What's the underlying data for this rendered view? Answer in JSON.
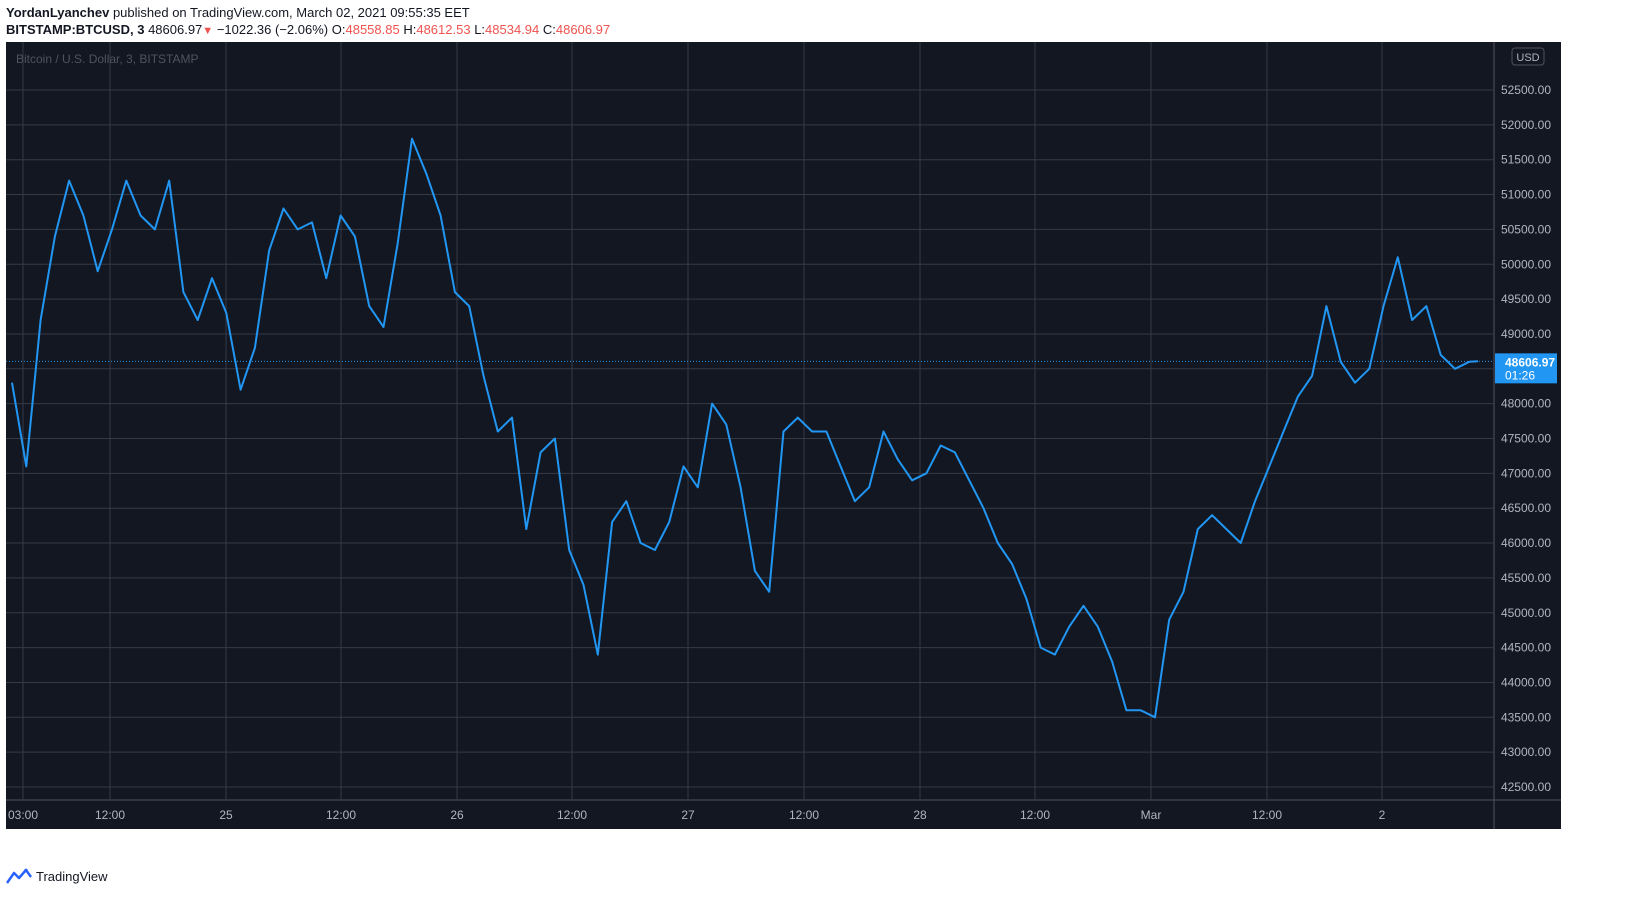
{
  "header": {
    "author": "YordanLyanchev",
    "published_text": "published on TradingView.com, March 02, 2021 09:55:35 EET",
    "symbol": "BITSTAMP:BTCUSD, 3",
    "last_price": "48606.97",
    "change": "−1022.36 (−2.06%)",
    "open_label": "O:",
    "open": "48558.85",
    "high_label": "H:",
    "high": "48612.53",
    "low_label": "L:",
    "low": "48534.94",
    "close_label": "C:",
    "close": "48606.97"
  },
  "footer": {
    "brand": "TradingView"
  },
  "colors": {
    "background": "#131722",
    "grid": "#363a45",
    "line": "#2196f3",
    "axis_text": "#b2b5be",
    "down": "#ef5350",
    "tag": "#2196f3"
  },
  "chart_data": {
    "type": "line",
    "title": "Bitcoin / U.S. Dollar, 3, BITSTAMP",
    "currency": "USD",
    "price_tag": {
      "value": "48606.97",
      "countdown": "01:26"
    },
    "ylim": [
      42500,
      53000
    ],
    "y_ticks": [
      "42500.00",
      "43000.00",
      "43500.00",
      "44000.00",
      "44500.00",
      "45000.00",
      "45500.00",
      "46000.00",
      "46500.00",
      "47000.00",
      "47500.00",
      "48000.00",
      "48500.00",
      "49000.00",
      "49500.00",
      "50000.00",
      "50500.00",
      "51000.00",
      "51500.00",
      "52000.00",
      "52500.00"
    ],
    "x_ticks": [
      "03:00",
      "12:00",
      "25",
      "12:00",
      "26",
      "12:00",
      "27",
      "12:00",
      "28",
      "12:00",
      "Mar",
      "12:00",
      "2"
    ],
    "x_start": "2021-02-24 00:00",
    "x_end": "2021-03-02 09:55",
    "grid": true,
    "series": [
      {
        "name": "BTCUSD",
        "x": [
          "2021-02-24 00:00",
          "2021-02-24 01:30",
          "2021-02-24 03:00",
          "2021-02-24 04:30",
          "2021-02-24 06:00",
          "2021-02-24 07:30",
          "2021-02-24 09:00",
          "2021-02-24 10:30",
          "2021-02-24 12:00",
          "2021-02-24 13:30",
          "2021-02-24 15:00",
          "2021-02-24 16:30",
          "2021-02-24 18:00",
          "2021-02-24 19:30",
          "2021-02-24 21:00",
          "2021-02-24 22:30",
          "2021-02-25 00:00",
          "2021-02-25 01:30",
          "2021-02-25 03:00",
          "2021-02-25 04:30",
          "2021-02-25 06:00",
          "2021-02-25 07:30",
          "2021-02-25 09:00",
          "2021-02-25 10:30",
          "2021-02-25 12:00",
          "2021-02-25 13:30",
          "2021-02-25 15:00",
          "2021-02-25 16:30",
          "2021-02-25 18:00",
          "2021-02-25 19:30",
          "2021-02-25 21:00",
          "2021-02-25 22:30",
          "2021-02-26 00:00",
          "2021-02-26 01:30",
          "2021-02-26 03:00",
          "2021-02-26 04:30",
          "2021-02-26 06:00",
          "2021-02-26 07:30",
          "2021-02-26 09:00",
          "2021-02-26 10:30",
          "2021-02-26 12:00",
          "2021-02-26 13:30",
          "2021-02-26 15:00",
          "2021-02-26 16:30",
          "2021-02-26 18:00",
          "2021-02-26 19:30",
          "2021-02-26 21:00",
          "2021-02-26 22:30",
          "2021-02-27 00:00",
          "2021-02-27 01:30",
          "2021-02-27 03:00",
          "2021-02-27 04:30",
          "2021-02-27 06:00",
          "2021-02-27 07:30",
          "2021-02-27 09:00",
          "2021-02-27 10:30",
          "2021-02-27 12:00",
          "2021-02-27 13:30",
          "2021-02-27 15:00",
          "2021-02-27 16:30",
          "2021-02-27 18:00",
          "2021-02-27 19:30",
          "2021-02-27 21:00",
          "2021-02-27 22:30",
          "2021-02-28 00:00",
          "2021-02-28 01:30",
          "2021-02-28 03:00",
          "2021-02-28 04:30",
          "2021-02-28 06:00",
          "2021-02-28 07:30",
          "2021-02-28 09:00",
          "2021-02-28 10:30",
          "2021-02-28 12:00",
          "2021-02-28 13:30",
          "2021-02-28 15:00",
          "2021-02-28 16:30",
          "2021-02-28 18:00",
          "2021-02-28 19:30",
          "2021-02-28 21:00",
          "2021-02-28 22:30",
          "2021-03-01 00:00",
          "2021-03-01 01:30",
          "2021-03-01 03:00",
          "2021-03-01 04:30",
          "2021-03-01 06:00",
          "2021-03-01 07:30",
          "2021-03-01 09:00",
          "2021-03-01 10:30",
          "2021-03-01 12:00",
          "2021-03-01 13:30",
          "2021-03-01 15:00",
          "2021-03-01 16:30",
          "2021-03-01 18:00",
          "2021-03-01 19:30",
          "2021-03-01 21:00",
          "2021-03-01 22:30",
          "2021-03-02 00:00",
          "2021-03-02 01:30",
          "2021-03-02 03:00",
          "2021-03-02 04:30",
          "2021-03-02 06:00",
          "2021-03-02 07:30",
          "2021-03-02 09:00",
          "2021-03-02 09:55"
        ],
        "y": [
          48300,
          47100,
          49200,
          50400,
          51200,
          50700,
          49900,
          50500,
          51200,
          50700,
          50500,
          51200,
          49600,
          49200,
          49800,
          49300,
          48200,
          48800,
          50200,
          50800,
          50500,
          50600,
          49800,
          50700,
          50400,
          49400,
          49100,
          50300,
          51800,
          51300,
          50700,
          49600,
          49400,
          48400,
          47600,
          47800,
          46200,
          47300,
          47500,
          45900,
          45400,
          44400,
          46300,
          46600,
          46000,
          45900,
          46300,
          47100,
          46800,
          48000,
          47700,
          46800,
          45600,
          45300,
          47600,
          47800,
          47600,
          47600,
          47100,
          46600,
          46800,
          47600,
          47200,
          46900,
          47000,
          47400,
          47300,
          46900,
          46500,
          46000,
          45700,
          45200,
          44500,
          44400,
          44800,
          45100,
          44800,
          44300,
          43600,
          43600,
          43500,
          44900,
          45300,
          46200,
          46400,
          46200,
          46000,
          46600,
          47100,
          47600,
          48100,
          48400,
          49400,
          48600,
          48300,
          48500,
          49400,
          50100,
          49200,
          49400,
          48700,
          48500,
          48600,
          48606.97
        ]
      }
    ]
  }
}
